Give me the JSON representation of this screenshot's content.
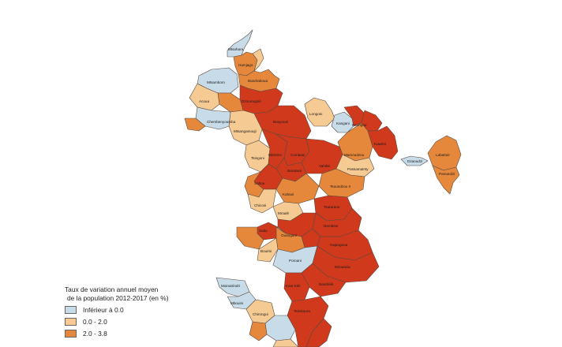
{
  "colors": {
    "negative": "#c7dbe8",
    "low": "#f6cb93",
    "mid": "#e6883c",
    "high": "#d0391c"
  },
  "legend": {
    "title_line1": "Taux de variation annuel moyen",
    "title_line2": "de la population 2012-2017 (en %)",
    "items": [
      {
        "label": "Inférieur à  0.0",
        "color_key": "negative"
      },
      {
        "label": "0.0 - 2.0",
        "color_key": "low"
      },
      {
        "label": "2.0 - 3.8",
        "color_key": "mid"
      }
    ]
  },
  "villages": [
    {
      "name": "Mtsahara",
      "cls": "negative"
    },
    {
      "name": "Hamjago",
      "cls": "mid"
    },
    {
      "name": "Mtsamboro",
      "cls": "negative"
    },
    {
      "name": "Mtsahara",
      "cls": "low"
    },
    {
      "name": "Bandraboua",
      "cls": "mid"
    },
    {
      "name": "Dzoumogné",
      "cls": "high"
    },
    {
      "name": "Bouyouni",
      "cls": "high"
    },
    {
      "name": "Longoni",
      "cls": "low"
    },
    {
      "name": "Kangani",
      "cls": "negative"
    },
    {
      "name": "Koungou",
      "cls": "high"
    },
    {
      "name": "Majicavo",
      "cls": "high"
    },
    {
      "name": "Kawéni",
      "cls": "high"
    },
    {
      "name": "Mamoudzou",
      "cls": "mid"
    },
    {
      "name": "Labattoir",
      "cls": "mid"
    },
    {
      "name": "Pamandzi",
      "cls": "mid"
    },
    {
      "name": "Dzaoudzi",
      "cls": "negative"
    },
    {
      "name": "Acoua",
      "cls": "low"
    },
    {
      "name": "Mtsangadoua",
      "cls": "mid"
    },
    {
      "name": "Mtsangamouji",
      "cls": "low"
    },
    {
      "name": "Chembenyoumba",
      "cls": "negative"
    },
    {
      "name": "Dzoumonyé",
      "cls": "mid"
    },
    {
      "name": "Tsingoni",
      "cls": "low"
    },
    {
      "name": "Miréréni",
      "cls": "high"
    },
    {
      "name": "Combani",
      "cls": "high"
    },
    {
      "name": "Barakani",
      "cls": "high"
    },
    {
      "name": "Sohoa",
      "cls": "high"
    },
    {
      "name": "Vahibé",
      "cls": "high"
    },
    {
      "name": "Passamaïnty",
      "cls": "low"
    },
    {
      "name": "Tsoundzou II",
      "cls": "mid"
    },
    {
      "name": "Sohoa",
      "cls": "mid"
    },
    {
      "name": "Kahani",
      "cls": "mid"
    },
    {
      "name": "Chiconi",
      "cls": "low"
    },
    {
      "name": "Mroalé",
      "cls": "low"
    },
    {
      "name": "Tsararano",
      "cls": "high"
    },
    {
      "name": "Ouangani",
      "cls": "high"
    },
    {
      "name": "Dembeni",
      "cls": "high"
    },
    {
      "name": "Iloni",
      "cls": "high"
    },
    {
      "name": "Sada",
      "cls": "high"
    },
    {
      "name": "Ouangani",
      "cls": "mid"
    },
    {
      "name": "Hajangoua",
      "cls": "high"
    },
    {
      "name": "Mangajou",
      "cls": "mid"
    },
    {
      "name": "Bouéni",
      "cls": "low"
    },
    {
      "name": "Poroani",
      "cls": "negative"
    },
    {
      "name": "Mzouazia",
      "cls": "high"
    },
    {
      "name": "Bandrélé",
      "cls": "high"
    },
    {
      "name": "Kani-Kéli",
      "cls": "high"
    },
    {
      "name": "Moinatrindri",
      "cls": "negative"
    },
    {
      "name": "Mbouini",
      "cls": "negative"
    },
    {
      "name": "Chirongui",
      "cls": "low"
    },
    {
      "name": "Tsimkoura",
      "cls": "high"
    }
  ]
}
